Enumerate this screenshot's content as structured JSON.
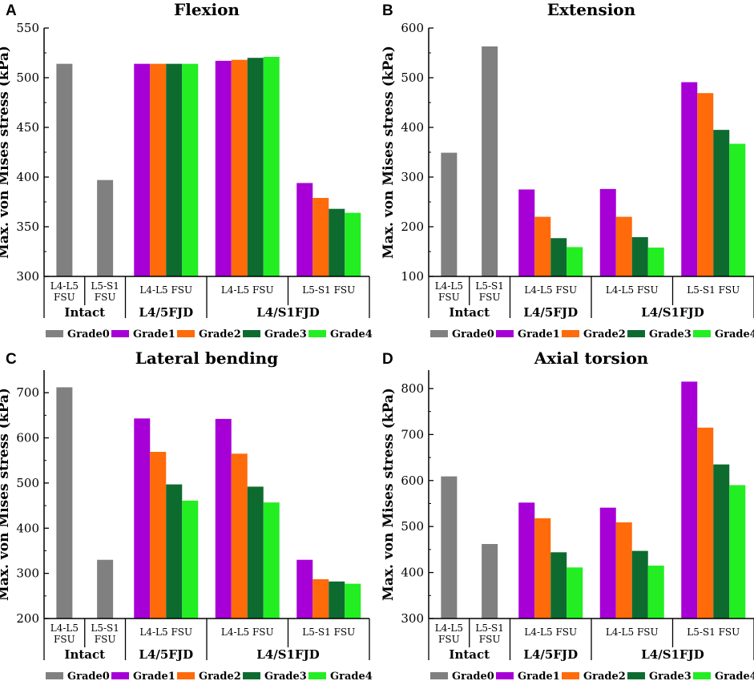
{
  "figure": {
    "series_names": [
      "Grade0",
      "Grade1",
      "Grade2",
      "Grade3",
      "Grade4"
    ],
    "series_colors": [
      "#808080",
      "#a600d6",
      "#ff6a0a",
      "#0d6b30",
      "#22ee22"
    ]
  },
  "chart_data": [
    {
      "panel": "A",
      "type": "bar",
      "title": "Flexion",
      "ylabel": "Max. von Mises stress (kPa)",
      "xlabel": "",
      "ylim": [
        300,
        550
      ],
      "yticks": [
        300,
        350,
        400,
        450,
        500,
        550
      ],
      "slots": [
        {
          "sublabel": [
            "L4-L5",
            "FSU"
          ],
          "group": 0,
          "values": [
            514
          ]
        },
        {
          "sublabel": [
            "L5-S1",
            "FSU"
          ],
          "group": 0,
          "values": [
            397
          ]
        },
        {
          "sublabel": [
            "L4-L5 FSU"
          ],
          "group": 1,
          "values": [
            514,
            514,
            514,
            514
          ]
        },
        {
          "sublabel": [
            "L4-L5 FSU"
          ],
          "group": 2,
          "values": [
            517,
            518,
            520,
            521
          ]
        },
        {
          "sublabel": [
            "L5-S1 FSU"
          ],
          "group": 2,
          "values": [
            394,
            379,
            368,
            364
          ]
        }
      ],
      "groups": [
        "Intact",
        "L4/5FJD",
        "L4/S1FJD"
      ]
    },
    {
      "panel": "B",
      "type": "bar",
      "title": "Extension",
      "ylabel": "Max. von Mises stress (kPa)",
      "xlabel": "",
      "ylim": [
        100,
        600
      ],
      "yticks": [
        100,
        200,
        300,
        400,
        500,
        600
      ],
      "slots": [
        {
          "sublabel": [
            "L4-L5",
            "FSU"
          ],
          "group": 0,
          "values": [
            349
          ]
        },
        {
          "sublabel": [
            "L5-S1",
            "FSU"
          ],
          "group": 0,
          "values": [
            563
          ]
        },
        {
          "sublabel": [
            "L4-L5 FSU"
          ],
          "group": 1,
          "values": [
            275,
            220,
            177,
            159
          ]
        },
        {
          "sublabel": [
            "L4-L5 FSU"
          ],
          "group": 2,
          "values": [
            276,
            220,
            179,
            158
          ]
        },
        {
          "sublabel": [
            "L5-S1 FSU"
          ],
          "group": 2,
          "values": [
            491,
            469,
            395,
            367
          ]
        }
      ],
      "groups": [
        "Intact",
        "L4/5FJD",
        "L4/S1FJD"
      ]
    },
    {
      "panel": "C",
      "type": "bar",
      "title": "Lateral bending",
      "ylabel": "Max. von Mises stress (kPa)",
      "xlabel": "",
      "ylim": [
        200,
        750
      ],
      "yticks": [
        200,
        300,
        400,
        500,
        600,
        700
      ],
      "slots": [
        {
          "sublabel": [
            "L4-L5",
            "FSU"
          ],
          "group": 0,
          "values": [
            712
          ]
        },
        {
          "sublabel": [
            "L5-S1",
            "FSU"
          ],
          "group": 0,
          "values": [
            330
          ]
        },
        {
          "sublabel": [
            "L4-L5 FSU"
          ],
          "group": 1,
          "values": [
            643,
            569,
            497,
            461
          ]
        },
        {
          "sublabel": [
            "L4-L5 FSU"
          ],
          "group": 2,
          "values": [
            642,
            565,
            492,
            457
          ]
        },
        {
          "sublabel": [
            "L5-S1 FSU"
          ],
          "group": 2,
          "values": [
            330,
            287,
            282,
            277
          ]
        }
      ],
      "groups": [
        "Intact",
        "L4/5FJD",
        "L4/S1FJD"
      ]
    },
    {
      "panel": "D",
      "type": "bar",
      "title": "Axial torsion",
      "ylabel": "Max. von Mises stress (kPa)",
      "xlabel": "",
      "ylim": [
        300,
        840
      ],
      "yticks": [
        300,
        400,
        500,
        600,
        700,
        800
      ],
      "slots": [
        {
          "sublabel": [
            "L4-L5",
            "FSU"
          ],
          "group": 0,
          "values": [
            609
          ]
        },
        {
          "sublabel": [
            "L5-S1",
            "FSU"
          ],
          "group": 0,
          "values": [
            462
          ]
        },
        {
          "sublabel": [
            "L4-L5 FSU"
          ],
          "group": 1,
          "values": [
            552,
            518,
            444,
            411
          ]
        },
        {
          "sublabel": [
            "L4-L5 FSU"
          ],
          "group": 2,
          "values": [
            541,
            509,
            447,
            415
          ]
        },
        {
          "sublabel": [
            "L5-S1 FSU"
          ],
          "group": 2,
          "values": [
            815,
            715,
            635,
            590
          ]
        }
      ],
      "groups": [
        "Intact",
        "L4/5FJD",
        "L4/S1FJD"
      ]
    }
  ]
}
